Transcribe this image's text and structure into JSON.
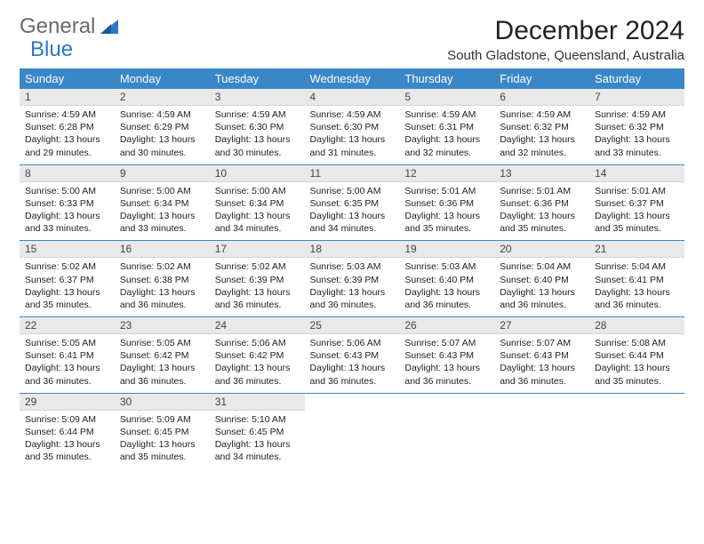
{
  "brand": {
    "word1": "General",
    "word2": "Blue"
  },
  "title": "December 2024",
  "location": "South Gladstone, Queensland, Australia",
  "colors": {
    "header_bg": "#3a87c8",
    "header_text": "#ffffff",
    "daynum_bg": "#e9e9e9",
    "row_border": "#3a87c8",
    "logo_gray": "#6a6a6a",
    "logo_blue": "#2d79c3",
    "page_bg": "#ffffff"
  },
  "typography": {
    "title_fontsize": 30,
    "location_fontsize": 15,
    "dayheader_fontsize": 13,
    "daynum_fontsize": 12,
    "body_fontsize": 10.5
  },
  "day_headers": [
    "Sunday",
    "Monday",
    "Tuesday",
    "Wednesday",
    "Thursday",
    "Friday",
    "Saturday"
  ],
  "weeks": [
    [
      {
        "n": "1",
        "sunrise": "Sunrise: 4:59 AM",
        "sunset": "Sunset: 6:28 PM",
        "daylight": "Daylight: 13 hours and 29 minutes."
      },
      {
        "n": "2",
        "sunrise": "Sunrise: 4:59 AM",
        "sunset": "Sunset: 6:29 PM",
        "daylight": "Daylight: 13 hours and 30 minutes."
      },
      {
        "n": "3",
        "sunrise": "Sunrise: 4:59 AM",
        "sunset": "Sunset: 6:30 PM",
        "daylight": "Daylight: 13 hours and 30 minutes."
      },
      {
        "n": "4",
        "sunrise": "Sunrise: 4:59 AM",
        "sunset": "Sunset: 6:30 PM",
        "daylight": "Daylight: 13 hours and 31 minutes."
      },
      {
        "n": "5",
        "sunrise": "Sunrise: 4:59 AM",
        "sunset": "Sunset: 6:31 PM",
        "daylight": "Daylight: 13 hours and 32 minutes."
      },
      {
        "n": "6",
        "sunrise": "Sunrise: 4:59 AM",
        "sunset": "Sunset: 6:32 PM",
        "daylight": "Daylight: 13 hours and 32 minutes."
      },
      {
        "n": "7",
        "sunrise": "Sunrise: 4:59 AM",
        "sunset": "Sunset: 6:32 PM",
        "daylight": "Daylight: 13 hours and 33 minutes."
      }
    ],
    [
      {
        "n": "8",
        "sunrise": "Sunrise: 5:00 AM",
        "sunset": "Sunset: 6:33 PM",
        "daylight": "Daylight: 13 hours and 33 minutes."
      },
      {
        "n": "9",
        "sunrise": "Sunrise: 5:00 AM",
        "sunset": "Sunset: 6:34 PM",
        "daylight": "Daylight: 13 hours and 33 minutes."
      },
      {
        "n": "10",
        "sunrise": "Sunrise: 5:00 AM",
        "sunset": "Sunset: 6:34 PM",
        "daylight": "Daylight: 13 hours and 34 minutes."
      },
      {
        "n": "11",
        "sunrise": "Sunrise: 5:00 AM",
        "sunset": "Sunset: 6:35 PM",
        "daylight": "Daylight: 13 hours and 34 minutes."
      },
      {
        "n": "12",
        "sunrise": "Sunrise: 5:01 AM",
        "sunset": "Sunset: 6:36 PM",
        "daylight": "Daylight: 13 hours and 35 minutes."
      },
      {
        "n": "13",
        "sunrise": "Sunrise: 5:01 AM",
        "sunset": "Sunset: 6:36 PM",
        "daylight": "Daylight: 13 hours and 35 minutes."
      },
      {
        "n": "14",
        "sunrise": "Sunrise: 5:01 AM",
        "sunset": "Sunset: 6:37 PM",
        "daylight": "Daylight: 13 hours and 35 minutes."
      }
    ],
    [
      {
        "n": "15",
        "sunrise": "Sunrise: 5:02 AM",
        "sunset": "Sunset: 6:37 PM",
        "daylight": "Daylight: 13 hours and 35 minutes."
      },
      {
        "n": "16",
        "sunrise": "Sunrise: 5:02 AM",
        "sunset": "Sunset: 6:38 PM",
        "daylight": "Daylight: 13 hours and 36 minutes."
      },
      {
        "n": "17",
        "sunrise": "Sunrise: 5:02 AM",
        "sunset": "Sunset: 6:39 PM",
        "daylight": "Daylight: 13 hours and 36 minutes."
      },
      {
        "n": "18",
        "sunrise": "Sunrise: 5:03 AM",
        "sunset": "Sunset: 6:39 PM",
        "daylight": "Daylight: 13 hours and 36 minutes."
      },
      {
        "n": "19",
        "sunrise": "Sunrise: 5:03 AM",
        "sunset": "Sunset: 6:40 PM",
        "daylight": "Daylight: 13 hours and 36 minutes."
      },
      {
        "n": "20",
        "sunrise": "Sunrise: 5:04 AM",
        "sunset": "Sunset: 6:40 PM",
        "daylight": "Daylight: 13 hours and 36 minutes."
      },
      {
        "n": "21",
        "sunrise": "Sunrise: 5:04 AM",
        "sunset": "Sunset: 6:41 PM",
        "daylight": "Daylight: 13 hours and 36 minutes."
      }
    ],
    [
      {
        "n": "22",
        "sunrise": "Sunrise: 5:05 AM",
        "sunset": "Sunset: 6:41 PM",
        "daylight": "Daylight: 13 hours and 36 minutes."
      },
      {
        "n": "23",
        "sunrise": "Sunrise: 5:05 AM",
        "sunset": "Sunset: 6:42 PM",
        "daylight": "Daylight: 13 hours and 36 minutes."
      },
      {
        "n": "24",
        "sunrise": "Sunrise: 5:06 AM",
        "sunset": "Sunset: 6:42 PM",
        "daylight": "Daylight: 13 hours and 36 minutes."
      },
      {
        "n": "25",
        "sunrise": "Sunrise: 5:06 AM",
        "sunset": "Sunset: 6:43 PM",
        "daylight": "Daylight: 13 hours and 36 minutes."
      },
      {
        "n": "26",
        "sunrise": "Sunrise: 5:07 AM",
        "sunset": "Sunset: 6:43 PM",
        "daylight": "Daylight: 13 hours and 36 minutes."
      },
      {
        "n": "27",
        "sunrise": "Sunrise: 5:07 AM",
        "sunset": "Sunset: 6:43 PM",
        "daylight": "Daylight: 13 hours and 36 minutes."
      },
      {
        "n": "28",
        "sunrise": "Sunrise: 5:08 AM",
        "sunset": "Sunset: 6:44 PM",
        "daylight": "Daylight: 13 hours and 35 minutes."
      }
    ],
    [
      {
        "n": "29",
        "sunrise": "Sunrise: 5:09 AM",
        "sunset": "Sunset: 6:44 PM",
        "daylight": "Daylight: 13 hours and 35 minutes."
      },
      {
        "n": "30",
        "sunrise": "Sunrise: 5:09 AM",
        "sunset": "Sunset: 6:45 PM",
        "daylight": "Daylight: 13 hours and 35 minutes."
      },
      {
        "n": "31",
        "sunrise": "Sunrise: 5:10 AM",
        "sunset": "Sunset: 6:45 PM",
        "daylight": "Daylight: 13 hours and 34 minutes."
      },
      {
        "empty": true
      },
      {
        "empty": true
      },
      {
        "empty": true
      },
      {
        "empty": true
      }
    ]
  ]
}
